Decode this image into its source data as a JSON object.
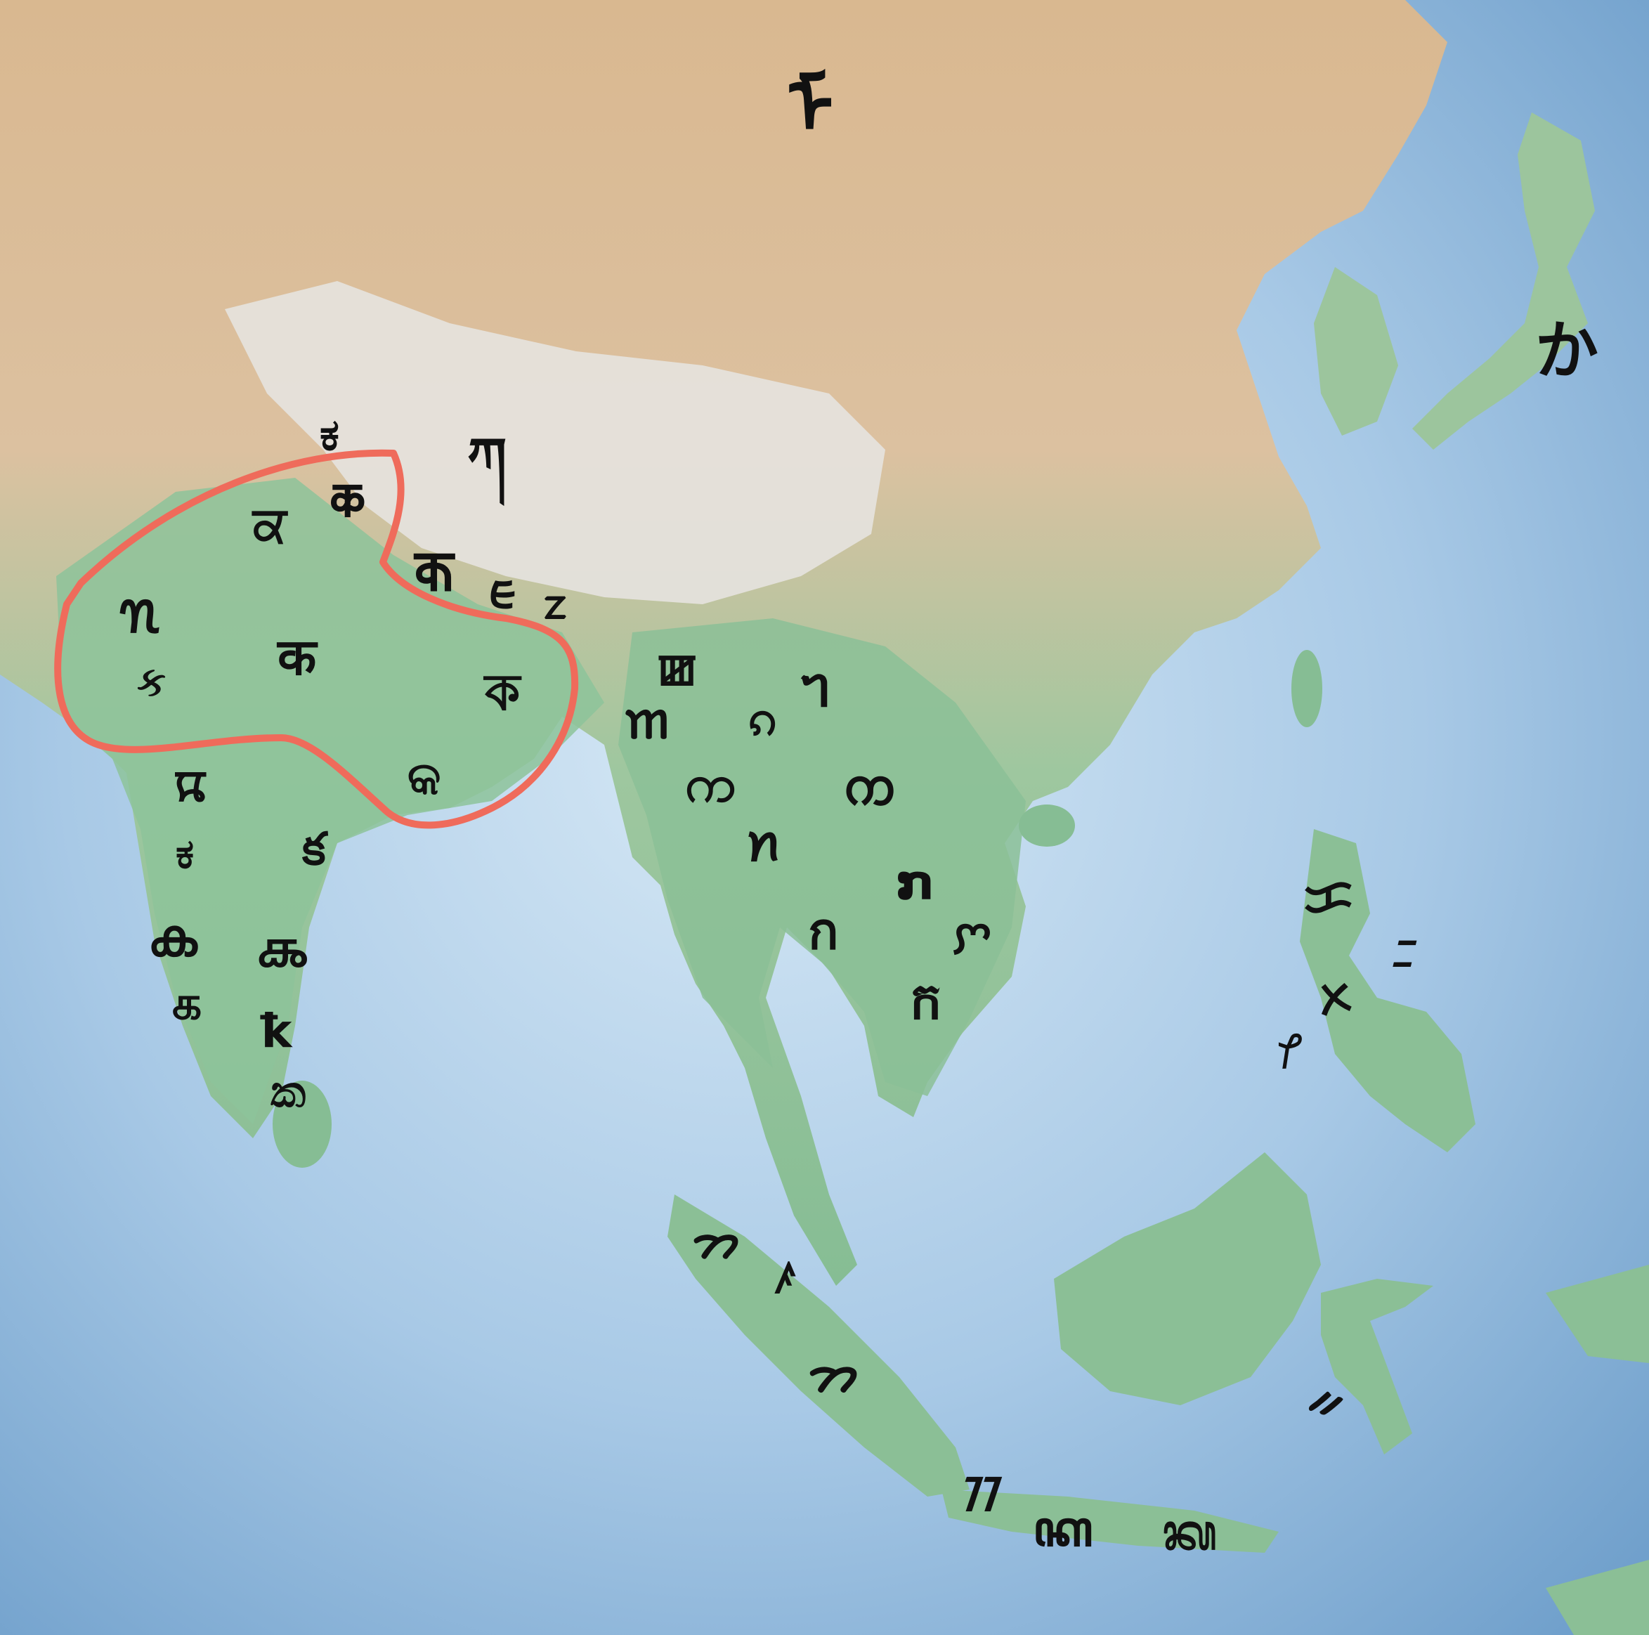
{
  "map": {
    "colors": {
      "ocean_deep": "#6f9fcb",
      "ocean_shallow": "#cfe3f3",
      "lowland": "#8fc29c",
      "upland": "#d8b78f",
      "plateau": "#e9e6e1",
      "highlight_outline": "#ef6b5b",
      "glyph": "#111111"
    },
    "highlight_region": "north-india-outline",
    "script_marks": [
      {
        "id": "mongolia",
        "char": "ᠮ"
      },
      {
        "id": "japan",
        "char": "か"
      },
      {
        "id": "kashmir-1",
        "char": "ಕ"
      },
      {
        "id": "tibet",
        "char": "ཀ"
      },
      {
        "id": "kashmir-2",
        "char": "𑆑"
      },
      {
        "id": "punjab",
        "char": "ਕ"
      },
      {
        "id": "nepal",
        "char": "𑐎"
      },
      {
        "id": "lepcha",
        "char": "ᰀ"
      },
      {
        "id": "limbu",
        "char": "ᤁ"
      },
      {
        "id": "sindh",
        "char": "𑊺"
      },
      {
        "id": "gujarat",
        "char": "ક"
      },
      {
        "id": "hindi",
        "char": "क"
      },
      {
        "id": "bengal",
        "char": "ক"
      },
      {
        "id": "odisha",
        "char": "କ"
      },
      {
        "id": "marathi",
        "char": "𑘎"
      },
      {
        "id": "kannada",
        "char": "ಕ"
      },
      {
        "id": "telugu",
        "char": "క"
      },
      {
        "id": "malayalam",
        "char": "ക"
      },
      {
        "id": "tamil-grantha",
        "char": "𑌕"
      },
      {
        "id": "tamil",
        "char": "க"
      },
      {
        "id": "tamil-2",
        "char": "ꝁ"
      },
      {
        "id": "sinhala",
        "char": "ක"
      },
      {
        "id": "ahom",
        "char": "𑜀"
      },
      {
        "id": "meetei",
        "char": "ꯀ"
      },
      {
        "id": "tai-le",
        "char": "ᥐ"
      },
      {
        "id": "shan",
        "char": "ၵ"
      },
      {
        "id": "burmese",
        "char": "က"
      },
      {
        "id": "lanna",
        "char": "ᨠ"
      },
      {
        "id": "tai-viet",
        "char": "ꪀ"
      },
      {
        "id": "lao",
        "char": "ກ"
      },
      {
        "id": "thai",
        "char": "ก"
      },
      {
        "id": "cham",
        "char": "ꨆ"
      },
      {
        "id": "khmer",
        "char": "ក"
      },
      {
        "id": "baybayin",
        "char": "ᜃ"
      },
      {
        "id": "buhid",
        "char": "ᝃ"
      },
      {
        "id": "tagbanwa",
        "char": "ᝣ"
      },
      {
        "id": "hanunoo",
        "char": "ᜣ"
      },
      {
        "id": "batak",
        "char": "ᯂ"
      },
      {
        "id": "rejang",
        "char": "ꤰ"
      },
      {
        "id": "lampung",
        "char": "ᯂ"
      },
      {
        "id": "sundanese",
        "char": "ᮊ"
      },
      {
        "id": "javanese",
        "char": "ꦏ"
      },
      {
        "id": "balinese",
        "char": "ᬓ"
      },
      {
        "id": "bugis",
        "char": "ᨀ"
      }
    ]
  }
}
